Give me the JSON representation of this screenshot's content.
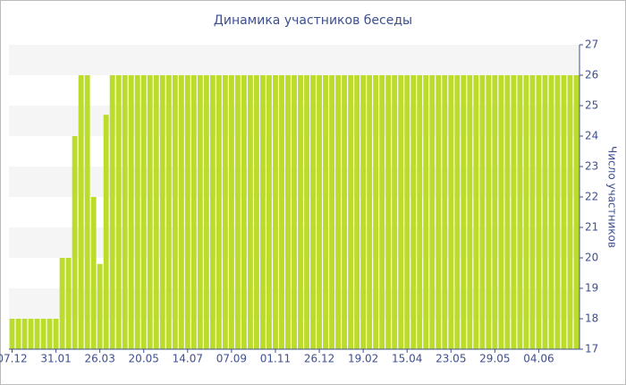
{
  "chart_data": {
    "type": "bar",
    "title": "Динамика участников беседы",
    "y_label": "Число участников",
    "categories": [
      "07.12",
      null,
      null,
      null,
      null,
      null,
      null,
      "31.01",
      null,
      null,
      null,
      null,
      null,
      null,
      "26.03",
      null,
      null,
      null,
      null,
      null,
      null,
      "20.05",
      null,
      null,
      null,
      null,
      null,
      null,
      "14.07",
      null,
      null,
      null,
      null,
      null,
      null,
      "07.09",
      null,
      null,
      null,
      null,
      null,
      null,
      "01.11",
      null,
      null,
      null,
      null,
      null,
      null,
      "26.12",
      null,
      null,
      null,
      null,
      null,
      null,
      "19.02",
      null,
      null,
      null,
      null,
      null,
      null,
      "15.04",
      null,
      null,
      null,
      null,
      null,
      null,
      "23.05",
      null,
      null,
      null,
      null,
      null,
      null,
      "29.05",
      null,
      null,
      null,
      null,
      null,
      null,
      "04.06",
      null,
      null,
      null,
      null,
      null,
      null
    ],
    "values": [
      18,
      18,
      18,
      18,
      18,
      18,
      18,
      18,
      20,
      20,
      24,
      26,
      26,
      22,
      19.8,
      24.7,
      26,
      26,
      26,
      26,
      26,
      26,
      26,
      26,
      26,
      26,
      26,
      26,
      26,
      26,
      26,
      26,
      26,
      26,
      26,
      26,
      26,
      26,
      26,
      26,
      26,
      26,
      26,
      26,
      26,
      26,
      26,
      26,
      26,
      26,
      26,
      26,
      26,
      26,
      26,
      26,
      26,
      26,
      26,
      26,
      26,
      26,
      26,
      26,
      26,
      26,
      26,
      26,
      26,
      26,
      26,
      26,
      26,
      26,
      26,
      26,
      26,
      26,
      26,
      26,
      26,
      26,
      26,
      26,
      26,
      26,
      26,
      26,
      26,
      26,
      26
    ],
    "color": "#bcdc2c",
    "ylim": [
      17,
      27
    ],
    "yticks": [
      17,
      18,
      19,
      20,
      21,
      22,
      23,
      24,
      25,
      26,
      27
    ],
    "y_axis_side": "right",
    "grid": "bands"
  }
}
